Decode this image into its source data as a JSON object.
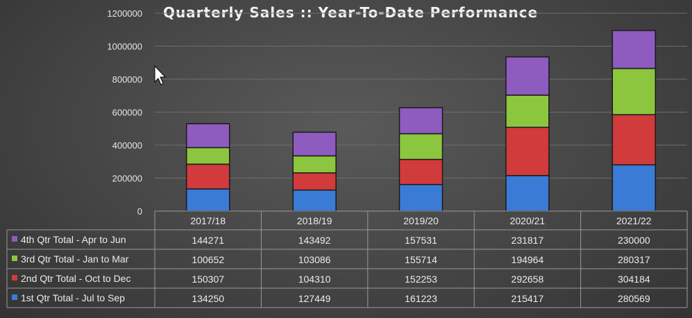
{
  "chart_data": {
    "type": "bar",
    "stacked": true,
    "title": "Quarterly Sales ::  Year-To-Date Performance",
    "categories": [
      "2017/18",
      "2018/19",
      "2019/20",
      "2020/21",
      "2021/22"
    ],
    "ylim": [
      0,
      1200000
    ],
    "yticks": [
      "0",
      "200000",
      "400000",
      "600000",
      "800000",
      "1000000",
      "1200000"
    ],
    "grid": true,
    "data_table": true,
    "series": [
      {
        "name": "1st Qtr Total - Jul to Sep",
        "color": "#3a7bd5",
        "values": [
          134250,
          127449,
          161223,
          215417,
          280569
        ]
      },
      {
        "name": "2nd Qtr Total - Oct to Dec",
        "color": "#d13b3b",
        "values": [
          150307,
          104310,
          152253,
          292658,
          304184
        ]
      },
      {
        "name": "3rd Qtr Total - Jan to Mar",
        "color": "#8cc63f",
        "values": [
          100652,
          103086,
          155714,
          194964,
          280317
        ]
      },
      {
        "name": "4th Qtr Total - Apr to Jun",
        "color": "#8e5bbf",
        "values": [
          144271,
          143492,
          157531,
          231817,
          230000
        ]
      }
    ]
  }
}
